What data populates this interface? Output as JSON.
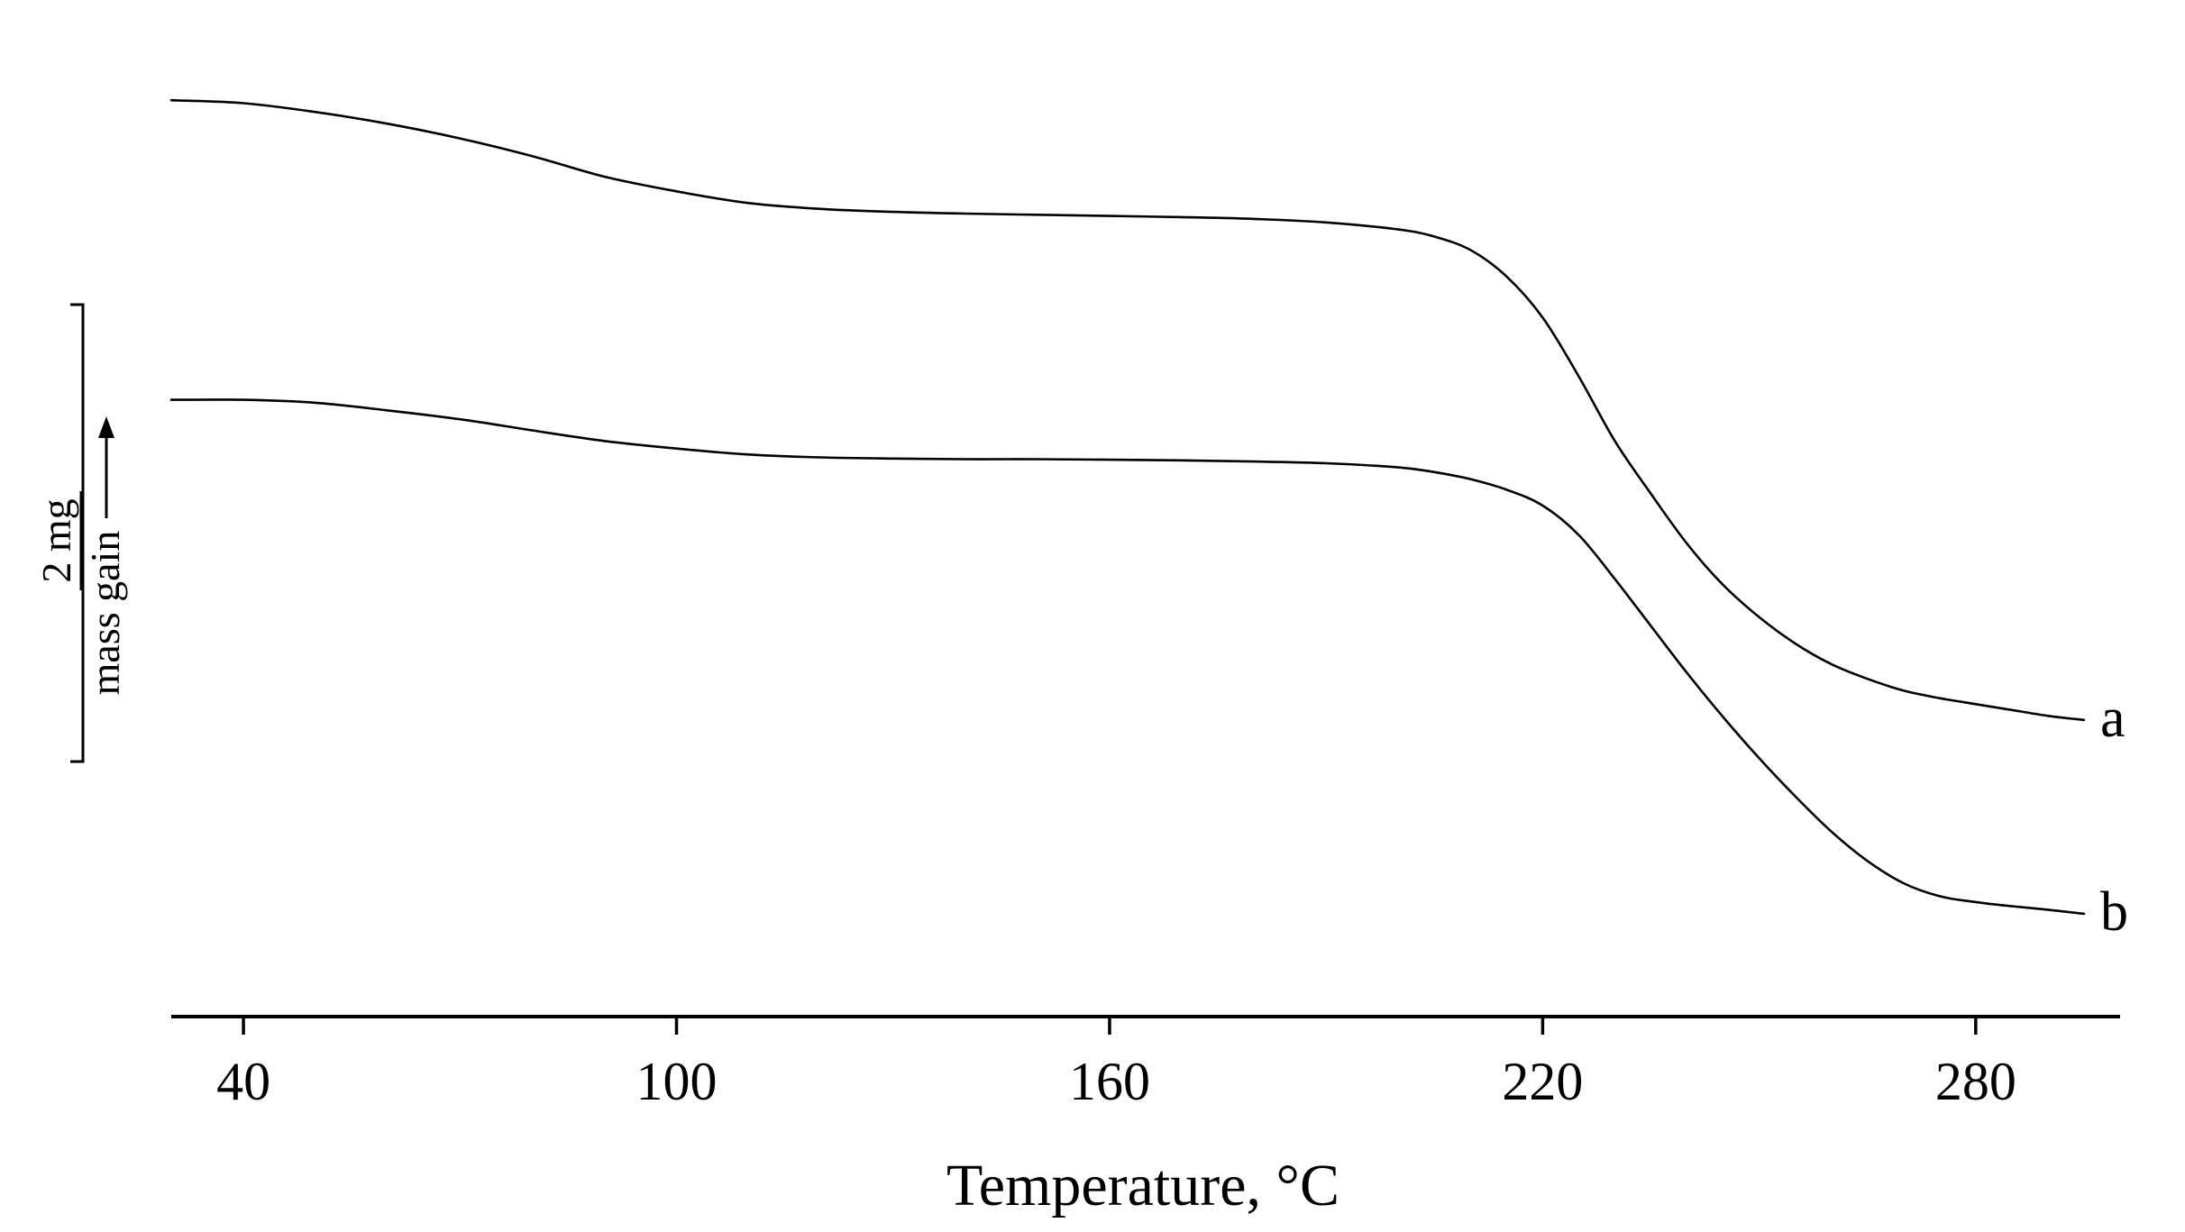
{
  "chart_data": {
    "type": "line",
    "xlabel": "Temperature, °C",
    "ylabel": "",
    "xticks": [
      40,
      100,
      160,
      220,
      280
    ],
    "xlim": [
      30,
      300
    ],
    "ylim": [
      0,
      17
    ],
    "grid": false,
    "legend": "none",
    "scale_bar": {
      "value_label": "2 mg",
      "direction_label": "mass gain",
      "value_mg": 2
    },
    "series": [
      {
        "name": "a",
        "x": [
          30,
          40,
          50,
          60,
          70,
          80,
          90,
          100,
          110,
          120,
          130,
          140,
          150,
          160,
          170,
          180,
          190,
          200,
          205,
          210,
          215,
          220,
          225,
          230,
          235,
          240,
          245,
          250,
          255,
          260,
          265,
          270,
          275,
          280,
          285,
          290,
          295
        ],
        "y": [
          15.6,
          15.55,
          15.4,
          15.2,
          14.95,
          14.65,
          14.3,
          14.05,
          13.85,
          13.75,
          13.7,
          13.67,
          13.65,
          13.63,
          13.61,
          13.58,
          13.52,
          13.4,
          13.28,
          13.05,
          12.6,
          11.9,
          10.9,
          9.8,
          8.9,
          8.05,
          7.35,
          6.8,
          6.35,
          6.0,
          5.75,
          5.55,
          5.42,
          5.32,
          5.22,
          5.12,
          5.05
        ]
      },
      {
        "name": "b",
        "x": [
          30,
          40,
          50,
          60,
          70,
          80,
          90,
          100,
          110,
          120,
          130,
          140,
          150,
          160,
          170,
          180,
          190,
          200,
          205,
          210,
          215,
          220,
          225,
          230,
          235,
          240,
          245,
          250,
          255,
          260,
          265,
          270,
          275,
          280,
          285,
          290,
          295
        ],
        "y": [
          10.5,
          10.5,
          10.45,
          10.32,
          10.17,
          9.98,
          9.8,
          9.67,
          9.57,
          9.52,
          9.5,
          9.49,
          9.49,
          9.48,
          9.47,
          9.45,
          9.42,
          9.35,
          9.27,
          9.15,
          8.97,
          8.7,
          8.2,
          7.45,
          6.65,
          5.85,
          5.1,
          4.4,
          3.75,
          3.15,
          2.65,
          2.27,
          2.05,
          1.95,
          1.88,
          1.82,
          1.75
        ]
      }
    ]
  }
}
